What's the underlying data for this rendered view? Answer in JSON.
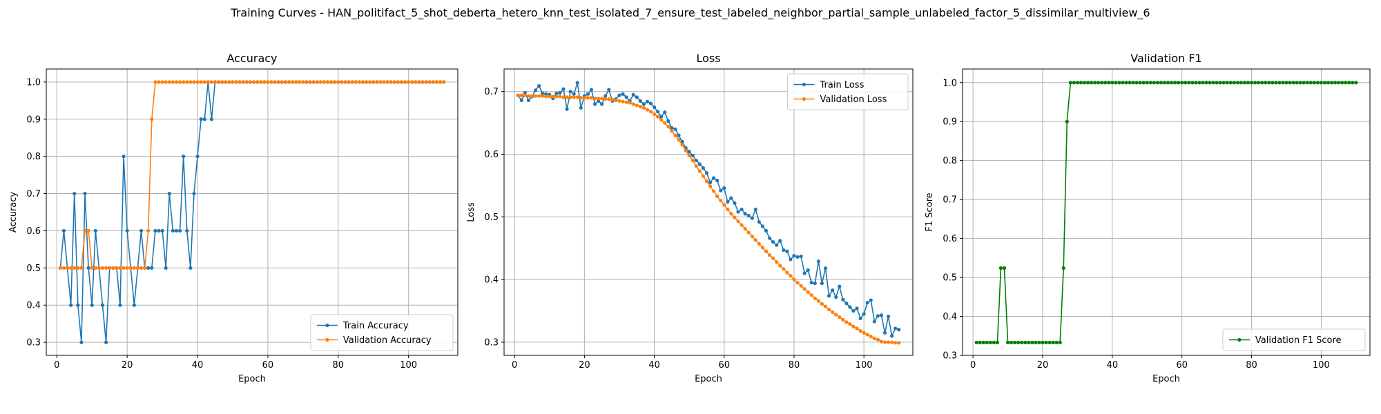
{
  "figure": {
    "suptitle": "Training Curves - HAN_politifact_5_shot_deberta_hetero_knn_test_isolated_7_ensure_test_labeled_neighbor_partial_sample_unlabeled_factor_5_dissimilar_multiview_6"
  },
  "colors": {
    "blue": "#1f77b4",
    "orange": "#ff7f0e",
    "green": "#008000",
    "grid": "#b0b0b0"
  },
  "chart_data": [
    {
      "type": "line",
      "title": "Accuracy",
      "xlabel": "Epoch",
      "ylabel": "Accuracy",
      "xlim": [
        -3,
        114
      ],
      "ylim": [
        0.265,
        1.035
      ],
      "xticks": [
        0,
        20,
        40,
        60,
        80,
        100
      ],
      "yticks": [
        0.3,
        0.4,
        0.5,
        0.6,
        0.7,
        0.8,
        0.9,
        1.0
      ],
      "ytick_labels": [
        "0.3",
        "0.4",
        "0.5",
        "0.6",
        "0.7",
        "0.8",
        "0.9",
        "1.0"
      ],
      "grid": true,
      "legend": "lower-right",
      "series": [
        {
          "name": "Train Accuracy",
          "color": "#1f77b4",
          "x_start": 1,
          "values": [
            0.5,
            0.6,
            0.5,
            0.4,
            0.7,
            0.4,
            0.3,
            0.7,
            0.5,
            0.4,
            0.6,
            0.5,
            0.4,
            0.3,
            0.5,
            0.5,
            0.5,
            0.4,
            0.8,
            0.6,
            0.5,
            0.4,
            0.5,
            0.6,
            0.5,
            0.5,
            0.5,
            0.6,
            0.6,
            0.6,
            0.5,
            0.7,
            0.6,
            0.6,
            0.6,
            0.8,
            0.6,
            0.5,
            0.7,
            0.8,
            0.9,
            0.9,
            1.0,
            0.9,
            1.0,
            1.0,
            1.0,
            1.0,
            1.0,
            1.0,
            1.0,
            1.0,
            1.0,
            1.0,
            1.0,
            1.0,
            1.0,
            1.0,
            1.0,
            1.0,
            1.0,
            1.0,
            1.0,
            1.0,
            1.0,
            1.0,
            1.0,
            1.0,
            1.0,
            1.0,
            1.0,
            1.0,
            1.0,
            1.0,
            1.0,
            1.0,
            1.0,
            1.0,
            1.0,
            1.0,
            1.0,
            1.0,
            1.0,
            1.0,
            1.0,
            1.0,
            1.0,
            1.0,
            1.0,
            1.0,
            1.0,
            1.0,
            1.0,
            1.0,
            1.0,
            1.0,
            1.0,
            1.0,
            1.0,
            1.0,
            1.0,
            1.0,
            1.0,
            1.0,
            1.0,
            1.0,
            1.0,
            1.0,
            1.0,
            1.0
          ]
        },
        {
          "name": "Validation Accuracy",
          "color": "#ff7f0e",
          "x_start": 1,
          "values": [
            0.5,
            0.5,
            0.5,
            0.5,
            0.5,
            0.5,
            0.5,
            0.6,
            0.6,
            0.5,
            0.5,
            0.5,
            0.5,
            0.5,
            0.5,
            0.5,
            0.5,
            0.5,
            0.5,
            0.5,
            0.5,
            0.5,
            0.5,
            0.5,
            0.5,
            0.6,
            0.9,
            1.0,
            1.0,
            1.0,
            1.0,
            1.0,
            1.0,
            1.0,
            1.0,
            1.0,
            1.0,
            1.0,
            1.0,
            1.0,
            1.0,
            1.0,
            1.0,
            1.0,
            1.0,
            1.0,
            1.0,
            1.0,
            1.0,
            1.0,
            1.0,
            1.0,
            1.0,
            1.0,
            1.0,
            1.0,
            1.0,
            1.0,
            1.0,
            1.0,
            1.0,
            1.0,
            1.0,
            1.0,
            1.0,
            1.0,
            1.0,
            1.0,
            1.0,
            1.0,
            1.0,
            1.0,
            1.0,
            1.0,
            1.0,
            1.0,
            1.0,
            1.0,
            1.0,
            1.0,
            1.0,
            1.0,
            1.0,
            1.0,
            1.0,
            1.0,
            1.0,
            1.0,
            1.0,
            1.0,
            1.0,
            1.0,
            1.0,
            1.0,
            1.0,
            1.0,
            1.0,
            1.0,
            1.0,
            1.0,
            1.0,
            1.0,
            1.0,
            1.0,
            1.0,
            1.0,
            1.0,
            1.0,
            1.0,
            1.0
          ]
        }
      ]
    },
    {
      "type": "line",
      "title": "Loss",
      "xlabel": "Epoch",
      "ylabel": "Loss",
      "xlim": [
        -3,
        114
      ],
      "ylim": [
        0.279,
        0.736
      ],
      "xticks": [
        0,
        20,
        40,
        60,
        80,
        100
      ],
      "yticks": [
        0.3,
        0.4,
        0.5,
        0.6,
        0.7
      ],
      "ytick_labels": [
        "0.3",
        "0.4",
        "0.5",
        "0.6",
        "0.7"
      ],
      "grid": true,
      "legend": "upper-right",
      "series": [
        {
          "name": "Train Loss",
          "color": "#1f77b4",
          "x_start": 1,
          "values": [
            0.694,
            0.686,
            0.698,
            0.686,
            0.692,
            0.702,
            0.709,
            0.697,
            0.696,
            0.695,
            0.689,
            0.697,
            0.698,
            0.704,
            0.672,
            0.7,
            0.696,
            0.714,
            0.674,
            0.693,
            0.696,
            0.703,
            0.68,
            0.685,
            0.68,
            0.693,
            0.703,
            0.685,
            0.688,
            0.694,
            0.696,
            0.691,
            0.685,
            0.695,
            0.691,
            0.685,
            0.68,
            0.684,
            0.681,
            0.675,
            0.668,
            0.66,
            0.667,
            0.653,
            0.642,
            0.64,
            0.63,
            0.62,
            0.61,
            0.604,
            0.598,
            0.59,
            0.584,
            0.578,
            0.57,
            0.555,
            0.562,
            0.558,
            0.542,
            0.546,
            0.524,
            0.53,
            0.522,
            0.508,
            0.512,
            0.505,
            0.502,
            0.498,
            0.512,
            0.492,
            0.485,
            0.478,
            0.466,
            0.46,
            0.455,
            0.462,
            0.447,
            0.445,
            0.432,
            0.438,
            0.436,
            0.437,
            0.41,
            0.415,
            0.395,
            0.394,
            0.429,
            0.394,
            0.418,
            0.374,
            0.383,
            0.372,
            0.389,
            0.368,
            0.362,
            0.356,
            0.35,
            0.354,
            0.338,
            0.345,
            0.363,
            0.367,
            0.333,
            0.342,
            0.343,
            0.315,
            0.341,
            0.31,
            0.322,
            0.32
          ]
        },
        {
          "name": "Validation Loss",
          "color": "#ff7f0e",
          "x_start": 1,
          "values": [
            0.694,
            0.694,
            0.694,
            0.693,
            0.693,
            0.693,
            0.693,
            0.693,
            0.692,
            0.692,
            0.692,
            0.692,
            0.692,
            0.691,
            0.691,
            0.691,
            0.691,
            0.691,
            0.69,
            0.69,
            0.69,
            0.69,
            0.689,
            0.689,
            0.689,
            0.688,
            0.688,
            0.687,
            0.686,
            0.685,
            0.684,
            0.683,
            0.682,
            0.68,
            0.678,
            0.676,
            0.674,
            0.671,
            0.668,
            0.664,
            0.66,
            0.655,
            0.65,
            0.644,
            0.637,
            0.63,
            0.623,
            0.615,
            0.606,
            0.598,
            0.59,
            0.581,
            0.573,
            0.565,
            0.557,
            0.549,
            0.541,
            0.533,
            0.526,
            0.519,
            0.512,
            0.505,
            0.499,
            0.493,
            0.487,
            0.481,
            0.475,
            0.469,
            0.463,
            0.457,
            0.451,
            0.445,
            0.439,
            0.434,
            0.428,
            0.422,
            0.417,
            0.411,
            0.406,
            0.4,
            0.395,
            0.39,
            0.385,
            0.38,
            0.375,
            0.37,
            0.366,
            0.361,
            0.357,
            0.352,
            0.348,
            0.344,
            0.34,
            0.336,
            0.332,
            0.329,
            0.325,
            0.322,
            0.318,
            0.315,
            0.312,
            0.309,
            0.306,
            0.304,
            0.301,
            0.3,
            0.3,
            0.3,
            0.299,
            0.299
          ]
        }
      ]
    },
    {
      "type": "line",
      "title": "Validation F1",
      "xlabel": "Epoch",
      "ylabel": "F1 Score",
      "xlim": [
        -3,
        114
      ],
      "ylim": [
        0.3,
        1.035
      ],
      "xticks": [
        0,
        20,
        40,
        60,
        80,
        100
      ],
      "yticks": [
        0.3,
        0.4,
        0.5,
        0.6,
        0.7,
        0.8,
        0.9,
        1.0
      ],
      "ytick_labels": [
        "0.3",
        "0.4",
        "0.5",
        "0.6",
        "0.7",
        "0.8",
        "0.9",
        "1.0"
      ],
      "grid": true,
      "legend": "lower-right",
      "series": [
        {
          "name": "Validation F1 Score",
          "color": "#008000",
          "x_start": 1,
          "values": [
            0.333,
            0.333,
            0.333,
            0.333,
            0.333,
            0.333,
            0.333,
            0.524,
            0.524,
            0.333,
            0.333,
            0.333,
            0.333,
            0.333,
            0.333,
            0.333,
            0.333,
            0.333,
            0.333,
            0.333,
            0.333,
            0.333,
            0.333,
            0.333,
            0.333,
            0.524,
            0.9,
            1.0,
            1.0,
            1.0,
            1.0,
            1.0,
            1.0,
            1.0,
            1.0,
            1.0,
            1.0,
            1.0,
            1.0,
            1.0,
            1.0,
            1.0,
            1.0,
            1.0,
            1.0,
            1.0,
            1.0,
            1.0,
            1.0,
            1.0,
            1.0,
            1.0,
            1.0,
            1.0,
            1.0,
            1.0,
            1.0,
            1.0,
            1.0,
            1.0,
            1.0,
            1.0,
            1.0,
            1.0,
            1.0,
            1.0,
            1.0,
            1.0,
            1.0,
            1.0,
            1.0,
            1.0,
            1.0,
            1.0,
            1.0,
            1.0,
            1.0,
            1.0,
            1.0,
            1.0,
            1.0,
            1.0,
            1.0,
            1.0,
            1.0,
            1.0,
            1.0,
            1.0,
            1.0,
            1.0,
            1.0,
            1.0,
            1.0,
            1.0,
            1.0,
            1.0,
            1.0,
            1.0,
            1.0,
            1.0,
            1.0,
            1.0,
            1.0,
            1.0,
            1.0,
            1.0,
            1.0,
            1.0,
            1.0,
            1.0
          ]
        }
      ]
    }
  ]
}
